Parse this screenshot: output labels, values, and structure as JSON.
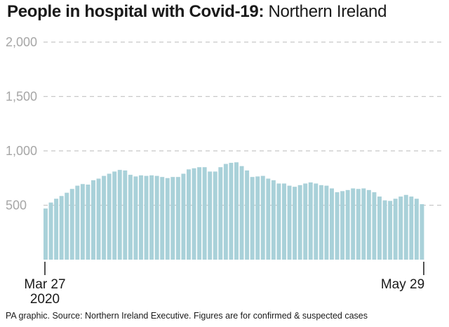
{
  "title": {
    "bold": "People in hospital with Covid-19:",
    "light": " Northern Ireland"
  },
  "footnote": "PA graphic. Source: Northern Ireland Executive. Figures are for confirmed & suspected cases",
  "colors": {
    "bar": "#a9d1d9",
    "grid": "#c8c8c8",
    "tick_text": "#a6a6a6",
    "axis": "#1a1a1a"
  },
  "chart_data": {
    "type": "bar",
    "title": "People in hospital with Covid-19: Northern Ireland",
    "xlabel": "",
    "ylabel": "",
    "ylim": [
      0,
      2000
    ],
    "yticks": [
      500,
      1000,
      1500,
      2000
    ],
    "ytick_labels": [
      "500",
      "1,000",
      "1,500",
      "2,000"
    ],
    "grid": true,
    "x_start_label": [
      "Mar 27",
      "2020"
    ],
    "x_end_label": "May 29",
    "values": [
      470,
      525,
      560,
      585,
      615,
      650,
      680,
      695,
      690,
      730,
      745,
      770,
      790,
      810,
      825,
      820,
      780,
      765,
      775,
      770,
      775,
      770,
      760,
      750,
      760,
      760,
      790,
      830,
      840,
      850,
      850,
      810,
      810,
      850,
      880,
      890,
      895,
      860,
      820,
      760,
      765,
      770,
      745,
      730,
      700,
      700,
      680,
      670,
      685,
      700,
      710,
      700,
      685,
      680,
      655,
      620,
      630,
      640,
      655,
      650,
      655,
      640,
      620,
      580,
      545,
      540,
      560,
      580,
      595,
      580,
      560,
      510
    ]
  }
}
